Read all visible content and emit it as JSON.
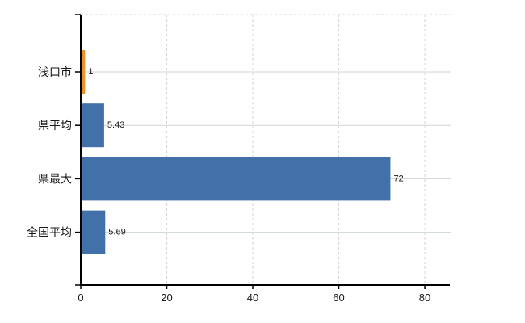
{
  "chart_data": {
    "type": "bar",
    "orientation": "horizontal",
    "title": "",
    "xlabel": "",
    "ylabel": "",
    "categories": [
      "浅口市",
      "県平均",
      "県最大",
      "全国平均"
    ],
    "values": [
      1,
      5.43,
      72,
      5.69
    ],
    "value_labels": [
      "1",
      "5.43",
      "72",
      "5.69"
    ],
    "bar_colors": [
      "#EC9130",
      "#4271AA",
      "#4271AA",
      "#4271AA"
    ],
    "x_tick_labels": [
      "0",
      "20",
      "40",
      "60",
      "80"
    ],
    "x_tick_values": [
      0,
      20,
      40,
      60,
      80
    ],
    "xlim": [
      0,
      86
    ],
    "legend_position": "none",
    "grid": {
      "horizontal": "solid",
      "vertical": "dashed",
      "top_border": "dashed"
    },
    "colors": {
      "h_grid": "#CDD7CD",
      "v_grid": "#D8D1D8",
      "axis": "#000000",
      "category_text": "#1A1A1A",
      "tick_text": "#1A1A1A",
      "value_text": "#1A1A1A",
      "background": "#FFFFFF"
    }
  }
}
